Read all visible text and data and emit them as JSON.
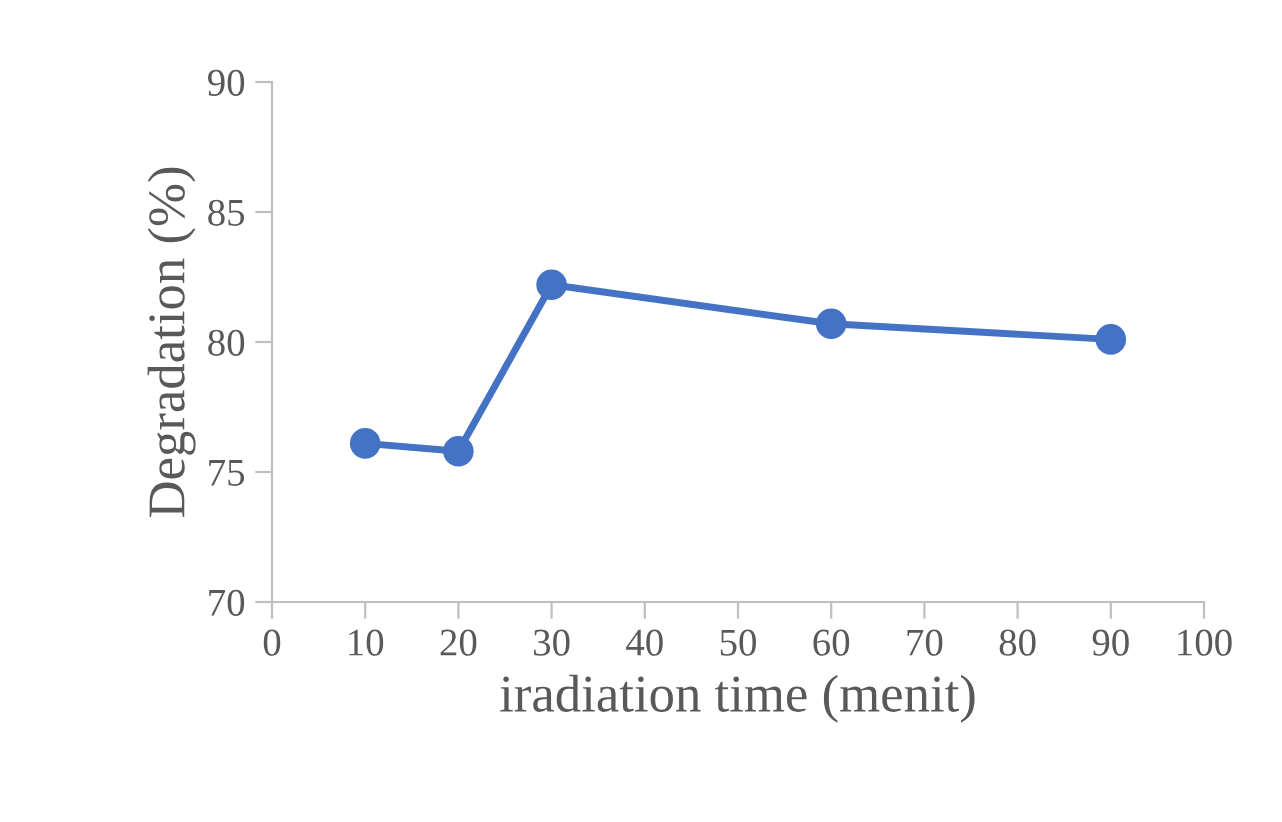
{
  "chart_data": {
    "type": "line",
    "xlabel": "iradiation time (menit)",
    "ylabel": "Degradation (%)",
    "x": [
      10,
      20,
      30,
      60,
      90
    ],
    "series": [
      {
        "color": "#4472c4",
        "values": [
          76.1,
          75.8,
          82.2,
          80.7,
          80.1
        ]
      }
    ],
    "xlim": [
      0,
      100
    ],
    "xticks": [
      0,
      10,
      20,
      30,
      40,
      50,
      60,
      70,
      80,
      90,
      100
    ],
    "ylim": [
      70,
      90
    ],
    "yticks": [
      70,
      75,
      80,
      85,
      90
    ],
    "marker": "circle",
    "line_style": "solid",
    "grid": false,
    "legend": false
  }
}
